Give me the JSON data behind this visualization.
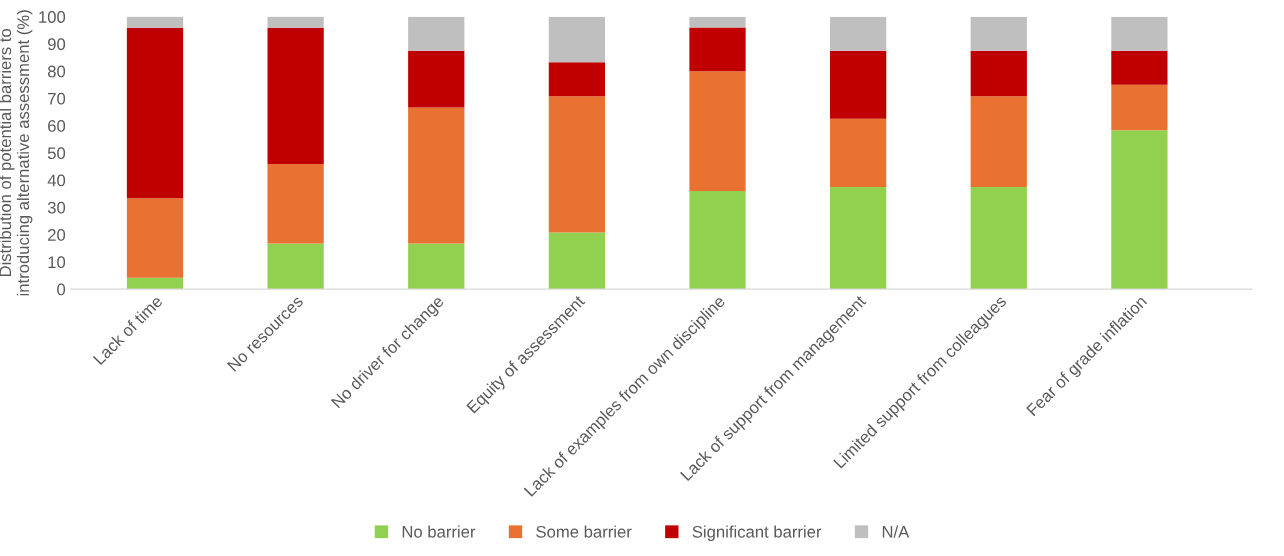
{
  "chart_data": {
    "type": "bar",
    "stacked": true,
    "ylabel": "Distribution of potential barriers to introducing alternative assessment (%)",
    "categories": [
      "Lack of time",
      "No resources",
      "No driver for change",
      "Equity of assessment",
      "Lack of examples from own discipline",
      "Lack of support from management",
      "Limited support from colleagues",
      "Fear of grade inflation"
    ],
    "series": [
      {
        "name": "No barrier",
        "color": "#92d050",
        "values": [
          4.2,
          16.7,
          16.7,
          20.8,
          36,
          37.5,
          37.5,
          58.3
        ]
      },
      {
        "name": "Some barrier",
        "color": "#e97132",
        "values": [
          29.2,
          29.2,
          50,
          50,
          44,
          25,
          33.3,
          16.7
        ]
      },
      {
        "name": "Significant barrier",
        "color": "#c00000",
        "values": [
          62.5,
          50,
          20.8,
          12.5,
          16,
          25,
          16.7,
          12.5
        ]
      },
      {
        "name": "N/A",
        "color": "#bfbfbf",
        "values": [
          4.2,
          4.2,
          12.5,
          16.7,
          4,
          12.5,
          12.5,
          12.5
        ]
      }
    ],
    "ylim": [
      0,
      100
    ],
    "yticks": [
      0,
      10,
      20,
      30,
      40,
      50,
      60,
      70,
      80,
      90,
      100
    ],
    "grid": false,
    "legend": "bottom"
  }
}
